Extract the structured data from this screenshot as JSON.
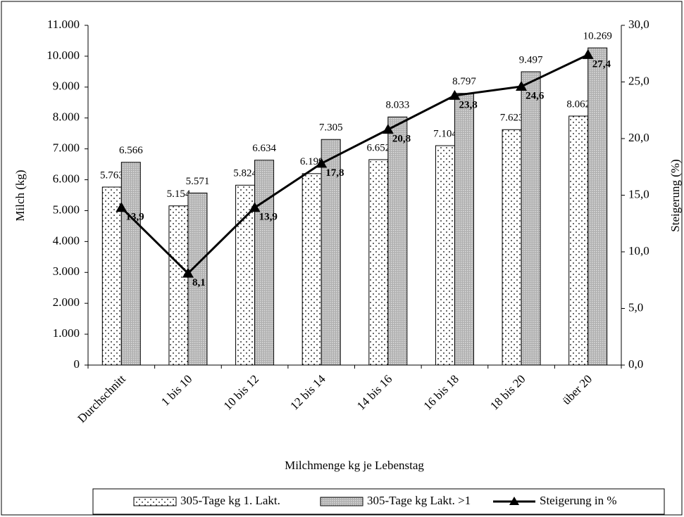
{
  "chart_data": {
    "type": "bar-line",
    "x_label": "Milchmenge kg je Lebenstag",
    "y_label": "Milch (kg)",
    "y2_label": "Steigerung (%)",
    "categories": [
      "Durchschnitt",
      "1 bis 10",
      "10 bis 12",
      "12 bis 14",
      "14 bis 16",
      "16 bis 18",
      "18 bis 20",
      "über 20"
    ],
    "series": [
      {
        "name": "305-Tage kg 1. Lakt.",
        "type": "bar",
        "color": "#ffffff",
        "pattern": "dots",
        "values": [
          5763,
          5154,
          5824,
          6199,
          6652,
          7104,
          7623,
          8062
        ],
        "value_labels": [
          "5.763",
          "5.154",
          "5.824",
          "6.199",
          "6.652",
          "7.104",
          "7.623",
          "8.062"
        ]
      },
      {
        "name": "305-Tage kg Lakt. >1",
        "type": "bar",
        "color": "#b0b0b0",
        "pattern": "crosshatch",
        "values": [
          6566,
          5571,
          6634,
          7305,
          8033,
          8797,
          9497,
          10269
        ],
        "value_labels": [
          "6.566",
          "5.571",
          "6.634",
          "7.305",
          "8.033",
          "8.797",
          "9.497",
          "10.269"
        ]
      },
      {
        "name": "Steigerung in %",
        "type": "line",
        "axis": "y2",
        "color": "#000000",
        "values": [
          13.9,
          8.1,
          13.9,
          17.8,
          20.8,
          23.8,
          24.6,
          27.4
        ],
        "value_labels": [
          "13,9",
          "8,1",
          "13,9",
          "17,8",
          "20,8",
          "23,8",
          "24,6",
          "27,4"
        ]
      }
    ],
    "ylim": [
      0,
      11000
    ],
    "yticks": [
      0,
      {
        "value": 1000,
        "label": "1.000"
      },
      {
        "value": 2000,
        "label": "2.000"
      },
      {
        "value": 3000,
        "label": "3.000"
      },
      {
        "value": 4000,
        "label": "4.000"
      },
      {
        "value": 5000,
        "label": "5.000"
      },
      {
        "value": 6000,
        "label": "6.000"
      },
      {
        "value": 7000,
        "label": "7.000"
      },
      {
        "value": 8000,
        "label": "8.000"
      },
      {
        "value": 9000,
        "label": "9.000"
      },
      {
        "value": 10000,
        "label": "10.000"
      },
      {
        "value": 11000,
        "label": "11.000"
      }
    ],
    "y2lim": [
      0,
      30
    ],
    "y2ticks": [
      {
        "value": 0,
        "label": "0,0"
      },
      {
        "value": 5,
        "label": "5,0"
      },
      {
        "value": 10,
        "label": "10,0"
      },
      {
        "value": 15,
        "label": "15,0"
      },
      {
        "value": 20,
        "label": "20,0"
      },
      {
        "value": 25,
        "label": "25,0"
      },
      {
        "value": 30,
        "label": "30,0"
      }
    ],
    "grid": false,
    "legend": "bottom"
  }
}
